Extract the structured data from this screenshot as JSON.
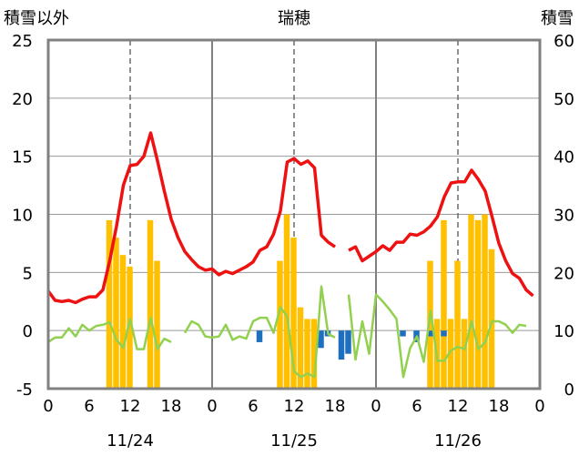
{
  "chart_data": {
    "type": "bar+line",
    "title": "瑞穂",
    "left_axis_label": "積雪以外",
    "right_axis_label": "積雪",
    "left_ylim": [
      -5,
      25
    ],
    "left_ticks": [
      "25",
      "20",
      "15",
      "10",
      "5",
      "0",
      "-5"
    ],
    "right_ylim": [
      0,
      60
    ],
    "right_ticks": [
      "60",
      "50",
      "40",
      "30",
      "20",
      "10",
      "0"
    ],
    "x_range_hours": [
      0,
      72
    ],
    "x_tick_labels": [
      "0",
      "6",
      "12",
      "18",
      "0",
      "6",
      "12",
      "18",
      "0",
      "6",
      "12",
      "18",
      "0"
    ],
    "date_labels": [
      "11/24",
      "11/25",
      "11/26"
    ],
    "grid": {
      "day_lines": true,
      "noon_lines_dashed": true,
      "horizontal": true
    },
    "colors": {
      "temperature": "#ee1111",
      "snow_depth": "#ffc000",
      "precip_change_neg": "#1f6fbf",
      "wind": "#92d050",
      "baseline": "#7030a0",
      "frame": "#808080"
    },
    "series": [
      {
        "key": "temperature",
        "axis": "left",
        "kind": "line",
        "points": [
          [
            0,
            3.4
          ],
          [
            1,
            2.6
          ],
          [
            2,
            2.5
          ],
          [
            3,
            2.6
          ],
          [
            4,
            2.4
          ],
          [
            5,
            2.7
          ],
          [
            6,
            2.9
          ],
          [
            7,
            2.9
          ],
          [
            8,
            3.5
          ],
          [
            9,
            6.0
          ],
          [
            10,
            9.0
          ],
          [
            11,
            12.5
          ],
          [
            12,
            14.2
          ],
          [
            13,
            14.3
          ],
          [
            14,
            15.0
          ],
          [
            15,
            17.0
          ],
          [
            16,
            14.6
          ],
          [
            17,
            12.0
          ],
          [
            18,
            9.6
          ],
          [
            19,
            8.0
          ],
          [
            20,
            6.8
          ],
          [
            21,
            6.1
          ],
          [
            22,
            5.5
          ],
          [
            23,
            5.2
          ],
          [
            24,
            5.3
          ],
          [
            25,
            4.8
          ],
          [
            26,
            5.1
          ],
          [
            27,
            4.9
          ],
          [
            28,
            5.2
          ],
          [
            29,
            5.5
          ],
          [
            30,
            5.9
          ],
          [
            31,
            6.9
          ],
          [
            32,
            7.2
          ],
          [
            33,
            8.3
          ],
          [
            34,
            10.3
          ],
          [
            35,
            14.5
          ],
          [
            36,
            14.8
          ],
          [
            37,
            14.3
          ],
          [
            38,
            14.6
          ],
          [
            39,
            14.0
          ],
          [
            40,
            8.2
          ],
          [
            41,
            7.6
          ],
          [
            42,
            7.2
          ],
          null,
          [
            44,
            6.9
          ],
          [
            45,
            7.2
          ],
          [
            46,
            6.0
          ],
          [
            47,
            6.4
          ],
          [
            48,
            6.8
          ],
          [
            49,
            7.3
          ],
          [
            50,
            6.9
          ],
          [
            51,
            7.6
          ],
          [
            52,
            7.6
          ],
          [
            53,
            8.3
          ],
          [
            54,
            8.2
          ],
          [
            55,
            8.5
          ],
          [
            56,
            9.0
          ],
          [
            57,
            9.8
          ],
          [
            58,
            11.5
          ],
          [
            59,
            12.7
          ],
          [
            60,
            12.8
          ],
          [
            61,
            12.8
          ],
          [
            62,
            13.8
          ],
          [
            63,
            13.0
          ],
          [
            64,
            12.0
          ],
          [
            65,
            9.8
          ],
          [
            66,
            7.5
          ],
          [
            67,
            6.0
          ],
          [
            68,
            4.9
          ],
          [
            69,
            4.5
          ],
          [
            70,
            3.5
          ],
          [
            71,
            3.0
          ]
        ]
      },
      {
        "key": "snow_depth",
        "axis": "right",
        "kind": "bar",
        "points": [
          [
            9,
            29
          ],
          [
            10,
            26
          ],
          [
            11,
            23
          ],
          [
            12,
            21
          ],
          [
            15,
            29
          ],
          [
            16,
            22
          ],
          [
            34,
            22
          ],
          [
            35,
            30
          ],
          [
            36,
            26
          ],
          [
            37,
            14
          ],
          [
            38,
            12
          ],
          [
            39,
            12
          ],
          [
            56,
            22
          ],
          [
            57,
            12
          ],
          [
            58,
            29
          ],
          [
            59,
            12
          ],
          [
            60,
            22
          ],
          [
            61,
            12
          ],
          [
            62,
            30
          ],
          [
            63,
            29
          ],
          [
            64,
            30
          ],
          [
            65,
            24
          ]
        ]
      },
      {
        "key": "precip_change_neg",
        "axis": "left",
        "kind": "bar",
        "points": [
          [
            31,
            -1.0
          ],
          [
            40,
            -1.5
          ],
          [
            41,
            -0.5
          ],
          [
            43,
            -2.5
          ],
          [
            44,
            -2.0
          ],
          [
            52,
            -0.5
          ],
          [
            54,
            -1.0
          ],
          [
            56,
            -0.5
          ],
          [
            58,
            -0.5
          ]
        ]
      },
      {
        "key": "wind",
        "axis": "left",
        "kind": "line",
        "points": [
          [
            0,
            -1.0
          ],
          [
            1,
            -0.6
          ],
          [
            2,
            -0.6
          ],
          [
            3,
            0.2
          ],
          [
            4,
            -0.5
          ],
          [
            5,
            0.5
          ],
          [
            6,
            0.0
          ],
          [
            7,
            0.4
          ],
          [
            8,
            0.5
          ],
          [
            9,
            0.7
          ],
          [
            10,
            -0.8
          ],
          [
            11,
            -1.5
          ],
          [
            12,
            1.0
          ],
          [
            13,
            -1.6
          ],
          [
            14,
            -1.6
          ],
          [
            15,
            1.1
          ],
          [
            16,
            -1.6
          ],
          [
            17,
            -0.7
          ],
          [
            18,
            -1.0
          ],
          null,
          [
            20,
            -0.2
          ],
          [
            21,
            0.8
          ],
          [
            22,
            0.5
          ],
          [
            23,
            -0.5
          ],
          [
            24,
            -0.6
          ],
          [
            25,
            -0.5
          ],
          [
            26,
            0.5
          ],
          [
            27,
            -0.8
          ],
          [
            28,
            -0.5
          ],
          [
            29,
            -0.7
          ],
          [
            30,
            0.8
          ],
          [
            31,
            1.1
          ],
          [
            32,
            1.1
          ],
          [
            33,
            -0.2
          ],
          [
            34,
            2.0
          ],
          [
            35,
            1.2
          ],
          [
            36,
            -3.5
          ],
          [
            37,
            -4.0
          ],
          [
            38,
            -3.7
          ],
          [
            39,
            -4.0
          ],
          [
            40,
            3.8
          ],
          [
            41,
            -0.3
          ],
          [
            42,
            -0.6
          ],
          null,
          [
            44,
            3.1
          ],
          [
            45,
            -2.5
          ],
          [
            46,
            0.8
          ],
          [
            47,
            -2.0
          ],
          [
            48,
            3.1
          ],
          [
            49,
            2.5
          ],
          [
            50,
            1.8
          ],
          [
            51,
            1.0
          ],
          [
            52,
            -4.0
          ],
          [
            53,
            -1.5
          ],
          [
            54,
            -0.5
          ],
          [
            55,
            -2.7
          ],
          [
            56,
            1.7
          ],
          [
            57,
            -2.6
          ],
          [
            58,
            -2.6
          ],
          [
            59,
            -1.7
          ],
          [
            60,
            -1.4
          ],
          [
            61,
            -1.6
          ],
          [
            62,
            0.8
          ],
          [
            63,
            -1.6
          ],
          [
            64,
            -1.0
          ],
          [
            65,
            0.8
          ],
          [
            66,
            0.8
          ],
          [
            67,
            0.5
          ],
          [
            68,
            -0.2
          ],
          [
            69,
            0.5
          ],
          [
            70,
            0.4
          ]
        ]
      },
      {
        "key": "baseline",
        "axis": "left",
        "kind": "line",
        "points": [
          [
            0,
            -5
          ],
          [
            72,
            -5
          ]
        ]
      }
    ]
  }
}
